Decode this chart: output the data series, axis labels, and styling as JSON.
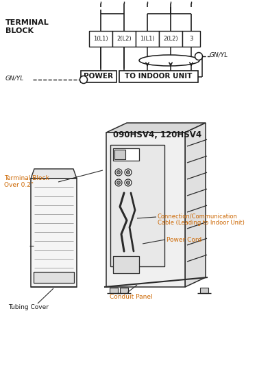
{
  "bg_color": "#ffffff",
  "line_color": "#1a1a1a",
  "orange_color": "#cc6600",
  "fig_width": 3.94,
  "fig_height": 5.36,
  "dpi": 100,
  "terminal_labels": [
    "1(L1)",
    "2(L2)",
    "1(L1)",
    "2(L2)",
    "3"
  ],
  "power_label": "POWER",
  "indoor_label": "TO INDOOR UNIT",
  "model_label": "090HSV4, 120HSV4"
}
